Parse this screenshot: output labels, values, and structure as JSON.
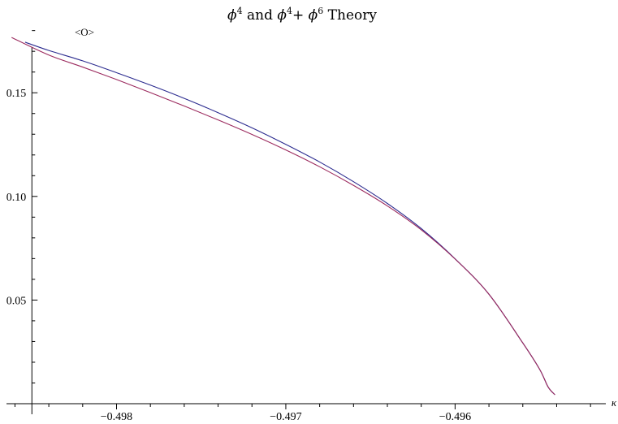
{
  "chart_data": {
    "type": "line",
    "title": {
      "base1": "ϕ",
      "sup1": "4",
      "and": " and ",
      "base2": "ϕ",
      "sup2": "4",
      "plus": "+ ",
      "base3": "ϕ",
      "sup3": "6",
      "rest": " Theory"
    },
    "ylabel": "<O>",
    "xlabel": "κ",
    "xlim": [
      -0.49865,
      -0.4951
    ],
    "ylim": [
      0.0,
      0.183
    ],
    "y_axis_crossing_x": -0.4985,
    "x_major_ticks": [
      -0.498,
      -0.497,
      -0.496
    ],
    "x_tick_labels": [
      "−0.498",
      "−0.497",
      "−0.496"
    ],
    "y_major_ticks": [
      0.05,
      0.1,
      0.15
    ],
    "y_tick_labels": [
      "0.05",
      "0.10",
      "0.15"
    ],
    "grid": false,
    "series": [
      {
        "color": "#2b2b8f",
        "x": [
          -0.49854,
          -0.4984,
          -0.4982,
          -0.498,
          -0.4978,
          -0.4976,
          -0.4974,
          -0.4972,
          -0.497,
          -0.4968,
          -0.4966,
          -0.4964,
          -0.4962,
          -0.496,
          -0.4958,
          -0.4956,
          -0.4955,
          -0.49545,
          -0.49541
        ],
        "values": [
          0.1744,
          0.1704,
          0.1654,
          0.1597,
          0.1537,
          0.1473,
          0.1404,
          0.1331,
          0.1251,
          0.1166,
          0.1071,
          0.0966,
          0.0845,
          0.0699,
          0.0528,
          0.0293,
          0.0165,
          0.008,
          0.0043
        ]
      },
      {
        "color": "#9b2a5e",
        "x": [
          -0.49862,
          -0.4984,
          -0.4982,
          -0.498,
          -0.4978,
          -0.4976,
          -0.4974,
          -0.4972,
          -0.497,
          -0.4968,
          -0.4966,
          -0.4964,
          -0.4962,
          -0.496,
          -0.4958,
          -0.4956,
          -0.4955,
          -0.49545,
          -0.49541
        ],
        "values": [
          0.1767,
          0.1682,
          0.1624,
          0.1564,
          0.1501,
          0.1436,
          0.1369,
          0.1299,
          0.1224,
          0.1143,
          0.1053,
          0.0954,
          0.0839,
          0.0698,
          0.0528,
          0.0293,
          0.0165,
          0.008,
          0.0043
        ]
      }
    ]
  }
}
